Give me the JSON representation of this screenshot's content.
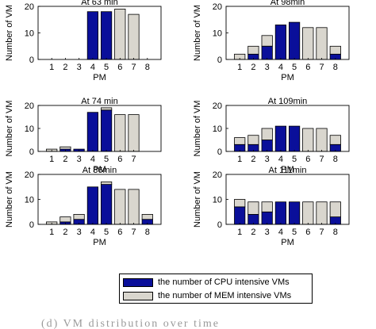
{
  "chart_data": [
    {
      "type": "bar",
      "stacked": true,
      "title": "At 63 min",
      "xlabel": "PM",
      "ylabel": "Number of VM",
      "categories": [
        "1",
        "2",
        "3",
        "4",
        "5",
        "6",
        "7",
        "8"
      ],
      "yticks": [
        "0",
        "10",
        "20"
      ],
      "ylim": [
        0,
        20
      ],
      "series": [
        {
          "name": "the number of CPU intensive VMs",
          "values": [
            0,
            0,
            0,
            18,
            18,
            0,
            0,
            0
          ]
        },
        {
          "name": "the number of MEM intensive VMs",
          "values": [
            0,
            0,
            0,
            0,
            0,
            19,
            17,
            0
          ]
        }
      ]
    },
    {
      "type": "bar",
      "stacked": true,
      "title": "At 98min",
      "xlabel": "PM",
      "ylabel": "Number of VM",
      "categories": [
        "1",
        "2",
        "3",
        "4",
        "5",
        "6",
        "7",
        "8"
      ],
      "yticks": [
        "0",
        "10",
        "20"
      ],
      "ylim": [
        0,
        20
      ],
      "series": [
        {
          "name": "the number of CPU intensive VMs",
          "values": [
            0,
            2,
            5,
            13,
            14,
            0,
            0,
            2
          ]
        },
        {
          "name": "the number of MEM intensive VMs",
          "values": [
            2,
            3,
            4,
            0,
            0,
            12,
            12,
            3
          ]
        }
      ]
    },
    {
      "type": "bar",
      "stacked": true,
      "title": "At 74 min",
      "xlabel": "PM",
      "ylabel": "Number of VM",
      "categories": [
        "1",
        "2",
        "3",
        "4",
        "5",
        "6",
        "7"
      ],
      "yticks": [
        "0",
        "10",
        "20"
      ],
      "ylim": [
        0,
        20
      ],
      "series": [
        {
          "name": "the number of CPU intensive VMs",
          "values": [
            0,
            1,
            1,
            17,
            18,
            0,
            0
          ]
        },
        {
          "name": "the number of MEM intensive VMs",
          "values": [
            1,
            1,
            0,
            0,
            1,
            16,
            16
          ]
        }
      ]
    },
    {
      "type": "bar",
      "stacked": true,
      "title": "At 109min",
      "xlabel": "PM",
      "ylabel": "Number of VM",
      "categories": [
        "1",
        "2",
        "3",
        "4",
        "5",
        "6",
        "7",
        "8"
      ],
      "yticks": [
        "0",
        "10",
        "20"
      ],
      "ylim": [
        0,
        20
      ],
      "series": [
        {
          "name": "the number of CPU intensive VMs",
          "values": [
            3,
            3,
            5,
            11,
            11,
            0,
            0,
            3
          ]
        },
        {
          "name": "the number of MEM intensive VMs",
          "values": [
            3,
            4,
            5,
            0,
            0,
            10,
            10,
            4
          ]
        }
      ]
    },
    {
      "type": "bar",
      "stacked": true,
      "title": "At 86min",
      "xlabel": "PM",
      "ylabel": "Number of VM",
      "categories": [
        "1",
        "2",
        "3",
        "4",
        "5",
        "6",
        "7",
        "8"
      ],
      "yticks": [
        "0",
        "10",
        "20"
      ],
      "ylim": [
        0,
        20
      ],
      "series": [
        {
          "name": "the number of CPU intensive VMs",
          "values": [
            0,
            1,
            2,
            15,
            16,
            0,
            0,
            2
          ]
        },
        {
          "name": "the number of MEM intensive VMs",
          "values": [
            1,
            2,
            2,
            0,
            1,
            14,
            14,
            2
          ]
        }
      ]
    },
    {
      "type": "bar",
      "stacked": true,
      "title": "At 111min",
      "xlabel": "PM",
      "ylabel": "Number of VM",
      "categories": [
        "1",
        "2",
        "3",
        "4",
        "5",
        "6",
        "7",
        "8"
      ],
      "yticks": [
        "0",
        "10",
        "20"
      ],
      "ylim": [
        0,
        20
      ],
      "series": [
        {
          "name": "the number of CPU intensive VMs",
          "values": [
            7,
            4,
            5,
            9,
            9,
            0,
            0,
            3
          ]
        },
        {
          "name": "the number of MEM intensive VMs",
          "values": [
            3,
            5,
            4,
            0,
            0,
            9,
            9,
            6
          ]
        }
      ]
    }
  ],
  "legend": {
    "cpu_label": "the number of CPU intensive VMs",
    "mem_label": "the number of MEM intensive VMs"
  },
  "colors": {
    "cpu": "#0a0f9a",
    "mem": "#d9d6ce"
  },
  "caption": "(d) VM distribution over time"
}
